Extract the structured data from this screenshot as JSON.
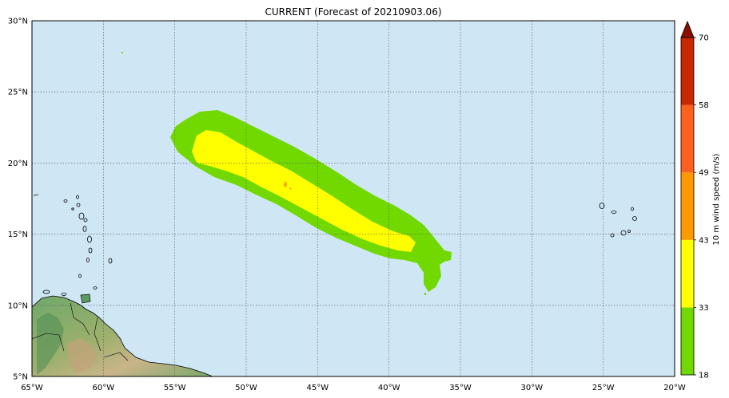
{
  "title": "CURRENT (Forecast of 20210903.06)",
  "map": {
    "ocean_color": "#cfe6f5",
    "x_ticks": [
      {
        "lon": -65,
        "label": "65°W"
      },
      {
        "lon": -60,
        "label": "60°W"
      },
      {
        "lon": -55,
        "label": "55°W"
      },
      {
        "lon": -50,
        "label": "50°W"
      },
      {
        "lon": -45,
        "label": "45°W"
      },
      {
        "lon": -40,
        "label": "40°W"
      },
      {
        "lon": -35,
        "label": "35°W"
      },
      {
        "lon": -30,
        "label": "30°W"
      },
      {
        "lon": -25,
        "label": "25°W"
      },
      {
        "lon": -20,
        "label": "20°W"
      }
    ],
    "y_ticks": [
      {
        "lat": 30,
        "label": "30°N"
      },
      {
        "lat": 25,
        "label": "25°N"
      },
      {
        "lat": 20,
        "label": "20°N"
      },
      {
        "lat": 15,
        "label": "15°N"
      },
      {
        "lat": 10,
        "label": "10°N"
      },
      {
        "lat": 5,
        "label": "5°N"
      }
    ],
    "lon_range": [
      -65,
      -20
    ],
    "lat_range": [
      5,
      30
    ],
    "grid": true
  },
  "colorbar": {
    "label": "10 m wind speed (m/s)",
    "levels": [
      {
        "value": "18",
        "color": "#71d900"
      },
      {
        "value": "33",
        "color": "#ffff00"
      },
      {
        "value": "43",
        "color": "#ff9900"
      },
      {
        "value": "49",
        "color": "#ff5f1f"
      },
      {
        "value": "58",
        "color": "#c82800"
      },
      {
        "value": "70",
        "color": "#8a0f00"
      }
    ]
  },
  "wind_field": {
    "outer_color": "#71d900",
    "inner_color": "#ffff00",
    "core_color": "#ff9900"
  }
}
